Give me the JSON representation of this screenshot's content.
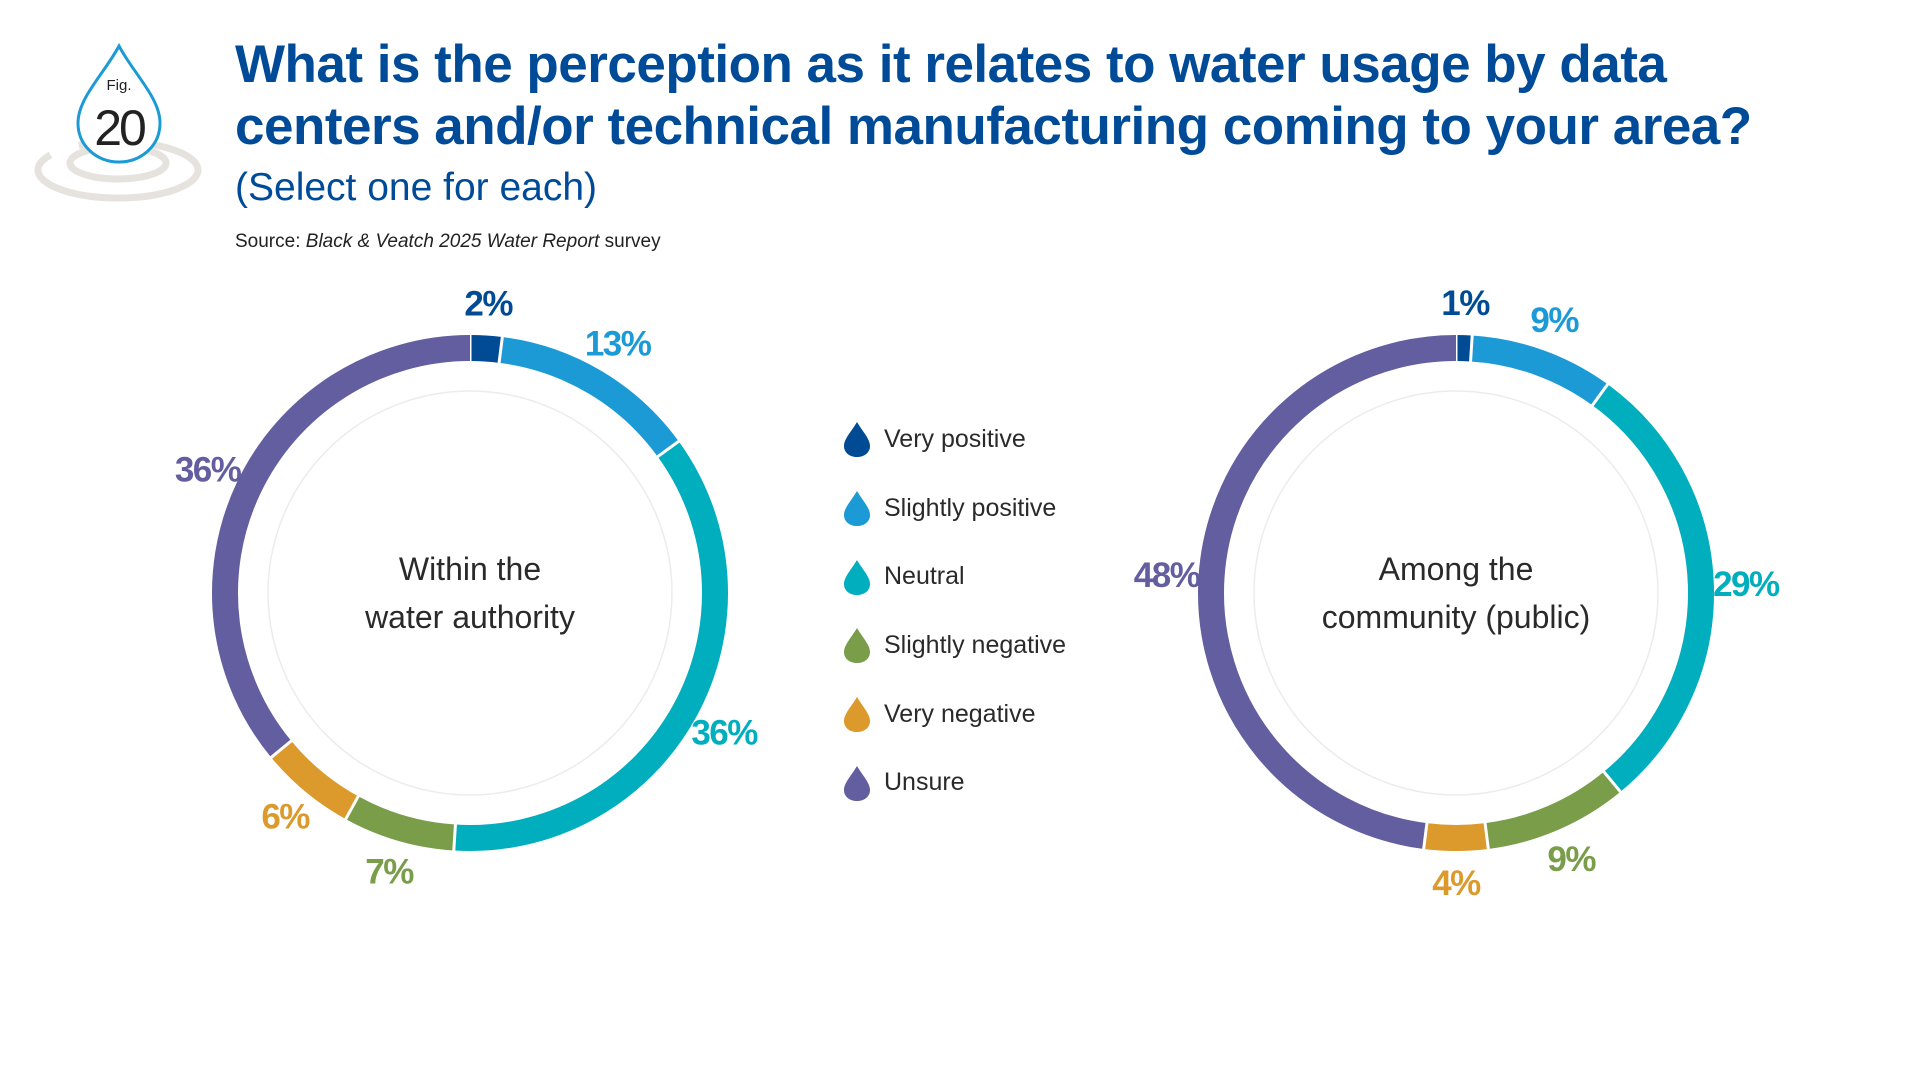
{
  "figure": {
    "fig_label": "Fig.",
    "fig_number": "20"
  },
  "header": {
    "title": "What is the perception as it relates to water usage by data centers and/or technical manufacturing coming to your area?",
    "subtitle": "(Select one for each)",
    "source_prefix": "Source: ",
    "source_italic": "Black & Veatch 2025 Water Report",
    "source_suffix": " survey"
  },
  "chart_data": [
    {
      "type": "pie",
      "variant": "donut",
      "title": "Within the water authority",
      "center_lines": [
        "Within the",
        "water authority"
      ],
      "categories": [
        "Very positive",
        "Slightly positive",
        "Neutral",
        "Slightly negative",
        "Very negative",
        "Unsure"
      ],
      "values": [
        2,
        13,
        36,
        7,
        6,
        36
      ],
      "labels": [
        "2%",
        "13%",
        "36%",
        "7%",
        "6%",
        "36%"
      ],
      "colors": [
        "#004B93",
        "#1B9AD6",
        "#00AEBE",
        "#7A9D4A",
        "#DB9A2B",
        "#625E9F"
      ]
    },
    {
      "type": "pie",
      "variant": "donut",
      "title": "Among the community (public)",
      "center_lines": [
        "Among the",
        "community (public)"
      ],
      "categories": [
        "Very positive",
        "Slightly positive",
        "Neutral",
        "Slightly negative",
        "Very negative",
        "Unsure"
      ],
      "values": [
        1,
        9,
        29,
        9,
        4,
        48
      ],
      "labels": [
        "1%",
        "9%",
        "29%",
        "9%",
        "4%",
        "48%"
      ],
      "colors": [
        "#004B93",
        "#1B9AD6",
        "#00AEBE",
        "#7A9D4A",
        "#DB9A2B",
        "#625E9F"
      ]
    }
  ],
  "legend": {
    "placement": "center",
    "items": [
      {
        "label": "Very positive",
        "color": "#004B93",
        "icon": "droplet-icon"
      },
      {
        "label": "Slightly positive",
        "color": "#1B9AD6",
        "icon": "droplet-icon"
      },
      {
        "label": "Neutral",
        "color": "#00AEBE",
        "icon": "droplet-icon"
      },
      {
        "label": "Slightly negative",
        "color": "#7A9D4A",
        "icon": "droplet-icon"
      },
      {
        "label": "Very negative",
        "color": "#DB9A2B",
        "icon": "droplet-icon"
      },
      {
        "label": "Unsure",
        "color": "#625E9F",
        "icon": "droplet-icon"
      }
    ]
  }
}
